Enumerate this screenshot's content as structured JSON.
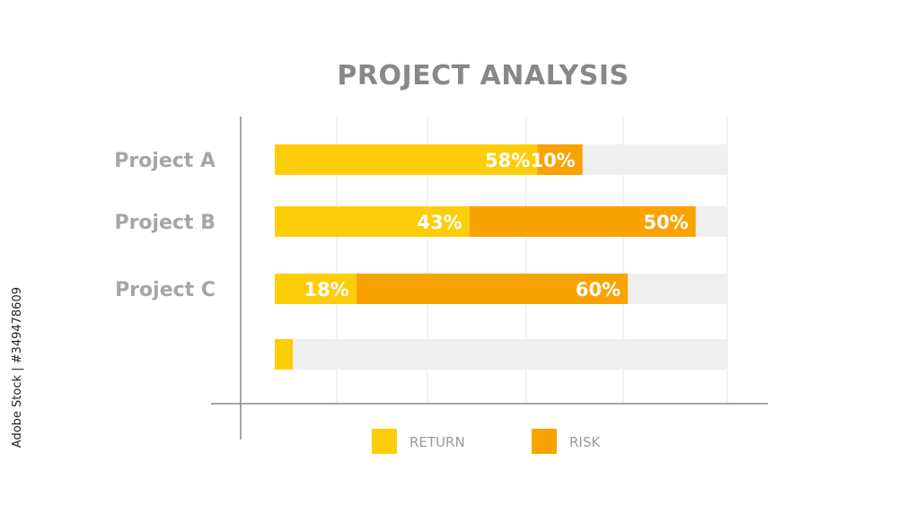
{
  "watermark": "Adobe Stock | #349478609",
  "chart_data": {
    "type": "bar",
    "orientation": "horizontal",
    "stacked": true,
    "title": "PROJECT ANALYSIS",
    "categories": [
      "Project A",
      "Project B",
      "Project C",
      ""
    ],
    "series": [
      {
        "name": "RETURN",
        "values": [
          58,
          43,
          18,
          4
        ],
        "labels": [
          "58%",
          "43%",
          "18%",
          ""
        ]
      },
      {
        "name": "RISK",
        "values": [
          10,
          50,
          60,
          0
        ],
        "labels": [
          "10%",
          "50%",
          "60%",
          ""
        ]
      }
    ],
    "xlim": [
      0,
      100
    ],
    "grid": true,
    "legend_position": "bottom",
    "colors": {
      "RETURN": "#fecd0a",
      "RISK": "#f9a300",
      "track": "#efefef",
      "grid": "#e6e6e6",
      "axis": "#888888"
    }
  }
}
